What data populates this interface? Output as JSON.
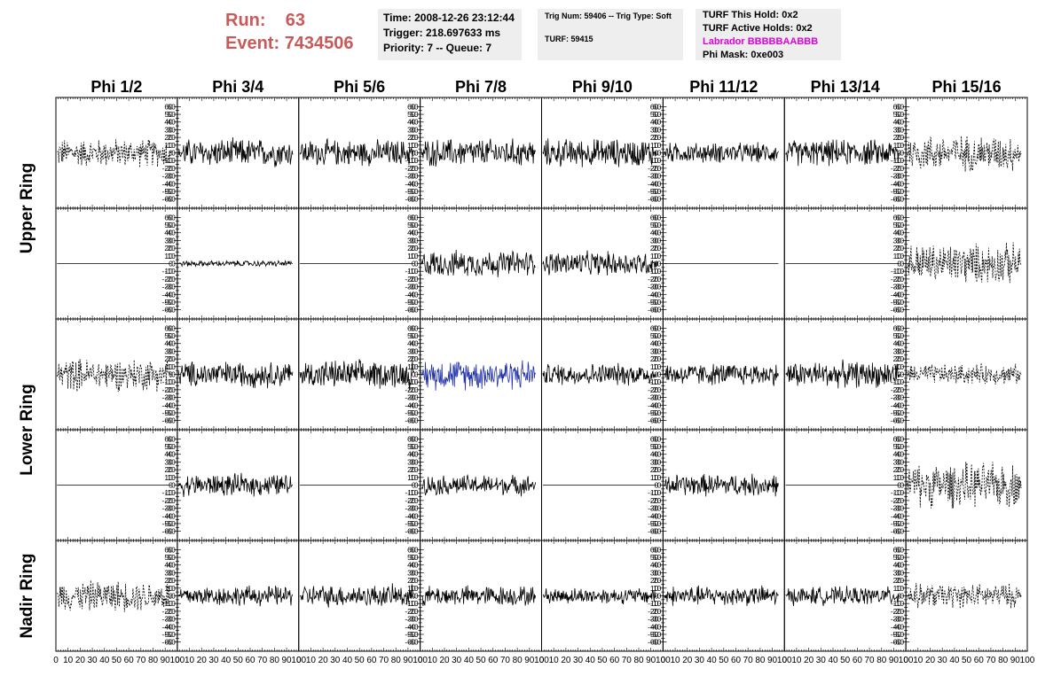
{
  "header": {
    "run_label": "Run:",
    "run_value": "63",
    "event_label": "Event:",
    "event_value": "7434506",
    "time": "Time: 2008-12-26 23:12:44",
    "trigger": "Trigger: 218.697633 ms",
    "priority": "Priority: 7 -- Queue: 7",
    "trig_num": "Trig Num: 59406 -- Trig Type: Soft",
    "turf": "TURF: 59415",
    "turf_this_hold": "TURF This Hold: 0x2",
    "turf_active_holds": "TURF Active Holds: 0x2",
    "labrador": "Labrador BBBBBAABBB",
    "phi_mask": "Phi Mask: 0xe003"
  },
  "colors": {
    "run_event": "#c85a5a",
    "labrador": "#e000e0",
    "highlight_trace": "#2233aa",
    "box": "#eeeeee"
  },
  "chart_data": {
    "type": "line",
    "title": "",
    "columns": [
      "Phi 1/2",
      "Phi 3/4",
      "Phi 5/6",
      "Phi 7/8",
      "Phi 9/10",
      "Phi 11/12",
      "Phi 13/14",
      "Phi 15/16"
    ],
    "rows": [
      "Upper Ring",
      "Lower Ring",
      "Nadir Ring"
    ],
    "xlim": [
      0,
      100
    ],
    "ylim": [
      -65,
      65
    ],
    "y_ticks": [
      -60,
      -50,
      -40,
      -30,
      -20,
      -10,
      0,
      10,
      20,
      30,
      40,
      50,
      60
    ],
    "x_ticks": [
      0,
      10,
      20,
      30,
      40,
      50,
      60,
      70,
      80,
      90,
      100
    ],
    "grid": false,
    "panel_amplitudes": [
      [
        14,
        14,
        13,
        14,
        14,
        10,
        13,
        18
      ],
      [
        0,
        3,
        0,
        13,
        12,
        0,
        0,
        20
      ],
      [
        16,
        13,
        14,
        15,
        11,
        11,
        13,
        10
      ],
      [
        0,
        11,
        0,
        10,
        0,
        11,
        0,
        22
      ],
      [
        15,
        10,
        11,
        10,
        8,
        10,
        9,
        12
      ]
    ],
    "panel_styles": [
      [
        "dash",
        "solid",
        "solid",
        "solid",
        "solid",
        "solid",
        "solid",
        "dash"
      ],
      [
        "solid",
        "solid",
        "solid",
        "solid",
        "solid",
        "solid",
        "solid",
        "dash"
      ],
      [
        "dash",
        "solid",
        "solid",
        "blue",
        "solid",
        "solid",
        "solid",
        "dash"
      ],
      [
        "solid",
        "solid",
        "solid",
        "solid",
        "solid",
        "solid",
        "solid",
        "dash"
      ],
      [
        "dash",
        "solid",
        "solid",
        "solid",
        "solid",
        "solid",
        "solid",
        "dash"
      ]
    ],
    "right_axis_columns": [
      0,
      2,
      4,
      6
    ]
  }
}
